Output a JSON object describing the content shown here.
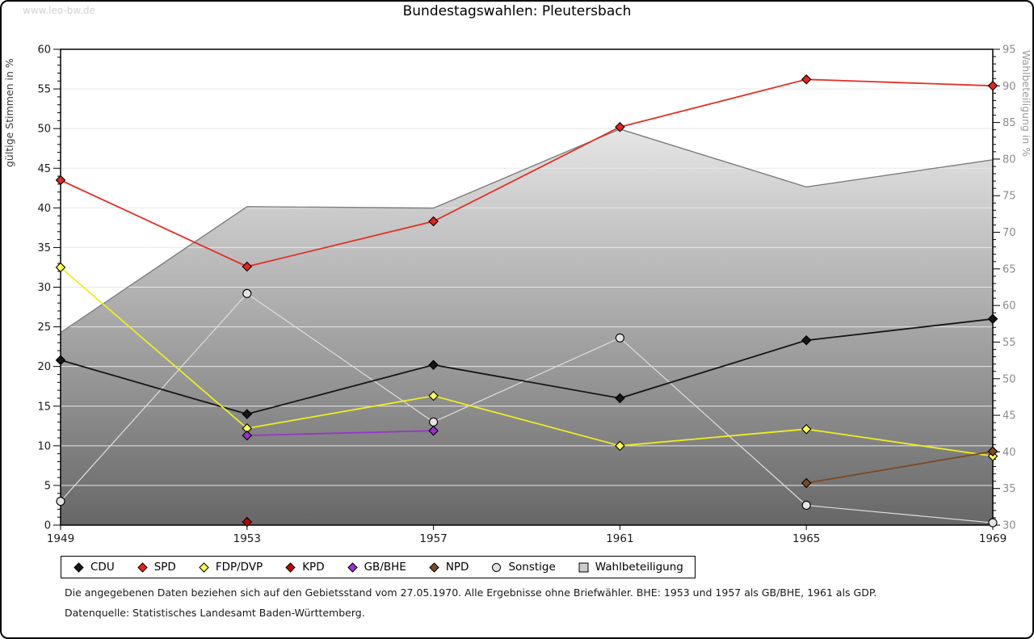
{
  "watermark": "www.leo-bw.de",
  "title": "Bundestagswahlen: Pleutersbach",
  "chart_data": {
    "type": "line",
    "title": "Bundestagswahlen: Pleutersbach",
    "x": [
      1949,
      1953,
      1957,
      1961,
      1965,
      1969
    ],
    "y_left": {
      "label": "gültige Stimmen in %",
      "min": 0,
      "max": 60,
      "step": 5
    },
    "y_right": {
      "label": "Wahlbeteiligung in %",
      "min": 30,
      "max": 95,
      "step": 5
    },
    "grid": "horizontal-major",
    "legend_position": "bottom-left",
    "series": [
      {
        "name": "CDU",
        "axis": "left",
        "marker": "diamond",
        "color": "#161616",
        "marker_fill": "#161616",
        "values": [
          20.8,
          14.0,
          20.2,
          16.0,
          23.3,
          26.0
        ]
      },
      {
        "name": "SPD",
        "axis": "left",
        "marker": "diamond",
        "color": "#e03127",
        "marker_fill": "#e2251f",
        "values": [
          43.5,
          32.6,
          38.3,
          50.2,
          56.2,
          55.4
        ]
      },
      {
        "name": "FDP/DVP",
        "axis": "left",
        "marker": "diamond",
        "color": "#eded24",
        "marker_fill": "#ffff55",
        "values": [
          32.5,
          12.2,
          16.3,
          10.0,
          12.1,
          8.7
        ]
      },
      {
        "name": "KPD",
        "axis": "left",
        "marker": "diamond",
        "color": "#b30f11",
        "marker_fill": "#c00000",
        "values": [
          null,
          0.4,
          null,
          null,
          null,
          null
        ]
      },
      {
        "name": "GB/BHE",
        "axis": "left",
        "marker": "diamond",
        "color": "#9933cc",
        "marker_fill": "#9933cc",
        "values": [
          null,
          11.3,
          11.9,
          null,
          null,
          null
        ]
      },
      {
        "name": "NPD",
        "axis": "left",
        "marker": "diamond",
        "color": "#7b4a25",
        "marker_fill": "#7b4a25",
        "values": [
          null,
          null,
          null,
          null,
          5.3,
          9.3
        ]
      },
      {
        "name": "Sonstige",
        "axis": "left",
        "marker": "circle",
        "color": "#dedede",
        "marker_fill": "#e4e4e4",
        "values": [
          3.0,
          29.2,
          13.0,
          23.6,
          2.5,
          0.3
        ]
      },
      {
        "name": "Wahlbeteiligung",
        "axis": "right",
        "type": "area",
        "color": "#7d7d7d",
        "marker_fill": "#cccccc",
        "values": [
          56.3,
          73.5,
          73.3,
          84.1,
          76.2,
          79.9
        ]
      }
    ],
    "area_gradient": {
      "top": "#ffffff",
      "bottom": "#676767"
    }
  },
  "footnotes": {
    "line1": "Die angegebenen Daten beziehen sich auf den Gebietsstand vom 27.05.1970. Alle Ergebnisse ohne Briefwähler. BHE: 1953 und 1957 als GB/BHE, 1961 als GDP.",
    "line2": "Datenquelle: Statistisches Landesamt Baden-Württemberg."
  }
}
